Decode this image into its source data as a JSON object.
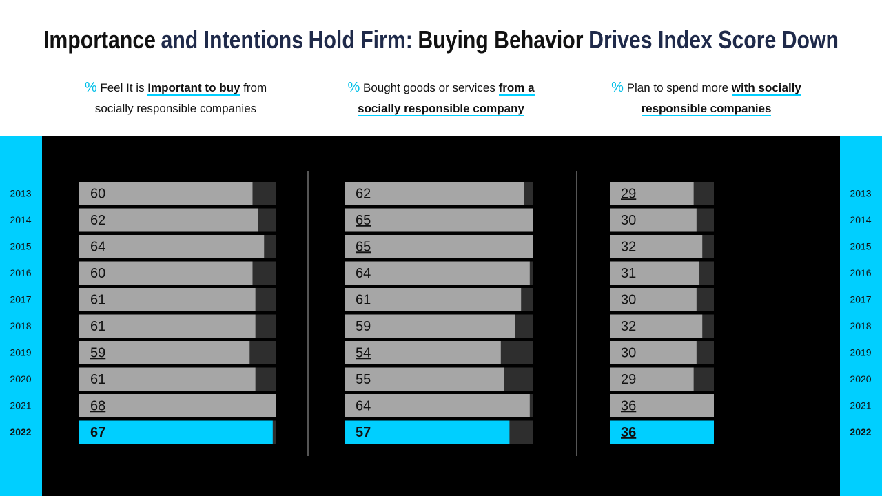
{
  "header": {
    "title_parts": [
      "Importance",
      "and Intentions",
      "Hold Firm:",
      "Buying Behavior",
      "Drives Index Score Down"
    ]
  },
  "chart_data": [
    {
      "type": "bar",
      "subtitle_parts": [
        "%",
        "Feel It is",
        "Important to buy",
        "from socially responsible companies"
      ],
      "categories": [
        "2013",
        "2014",
        "2015",
        "2016",
        "2017",
        "2018",
        "2019",
        "2020",
        "2021",
        "2022"
      ],
      "values": [
        60,
        62,
        64,
        60,
        61,
        61,
        59,
        61,
        68,
        67
      ],
      "underlined": [
        false,
        false,
        false,
        false,
        false,
        false,
        true,
        false,
        true,
        false
      ],
      "xlim": [
        0,
        68
      ],
      "color": "#a6a6a6",
      "track_color": "#2e2e2e",
      "highlight_color": "#00cfff"
    },
    {
      "type": "bar",
      "subtitle_parts": [
        "%",
        "Bought goods or services",
        "from a socially responsible company"
      ],
      "categories": [
        "2013",
        "2014",
        "2015",
        "2016",
        "2017",
        "2018",
        "2019",
        "2020",
        "2021",
        "2022"
      ],
      "values": [
        62,
        65,
        65,
        64,
        61,
        59,
        54,
        55,
        64,
        57
      ],
      "underlined": [
        false,
        true,
        true,
        false,
        false,
        false,
        true,
        false,
        false,
        false
      ],
      "xlim": [
        0,
        65
      ],
      "color": "#a6a6a6",
      "track_color": "#2e2e2e",
      "highlight_color": "#00cfff"
    },
    {
      "type": "bar",
      "subtitle_parts": [
        "%",
        "Plan to spend more",
        "with socially responsible companies"
      ],
      "categories": [
        "2013",
        "2014",
        "2015",
        "2016",
        "2017",
        "2018",
        "2019",
        "2020",
        "2021",
        "2022"
      ],
      "values": [
        29,
        30,
        32,
        31,
        30,
        32,
        30,
        29,
        36,
        36
      ],
      "underlined": [
        true,
        false,
        false,
        false,
        false,
        false,
        false,
        false,
        true,
        true
      ],
      "xlim": [
        0,
        36
      ],
      "color": "#a6a6a6",
      "track_color": "#2e2e2e",
      "highlight_color": "#00cfff"
    }
  ]
}
